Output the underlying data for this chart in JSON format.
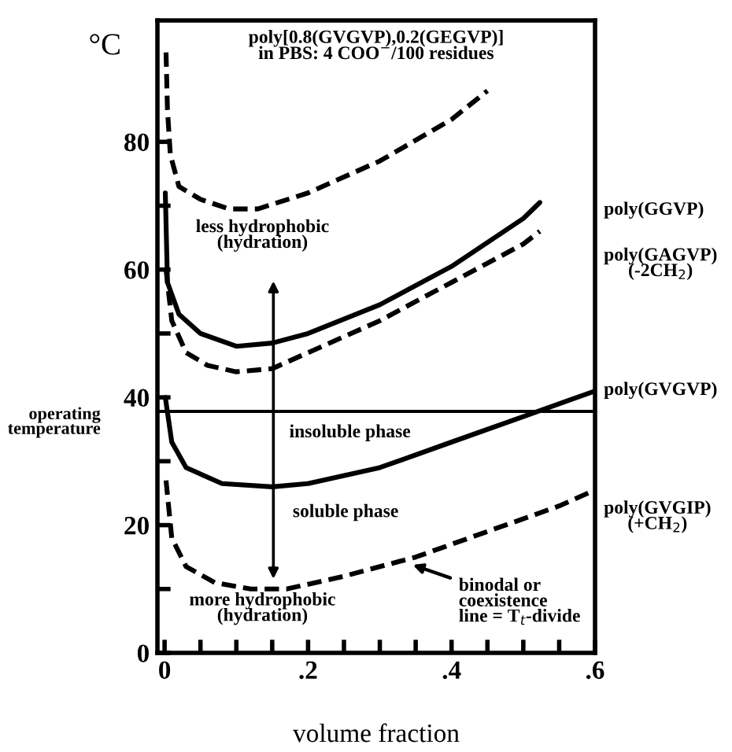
{
  "chart_data": {
    "type": "line",
    "title": "poly[0.8(GVGVP),0.2(GEGVP)]\nin PBS: 4 COO$^{−}$/100 residues",
    "xlabel": "volume fraction",
    "ylabel": "°C",
    "xlim": [
      -0.01,
      0.6
    ],
    "ylim": [
      0,
      99
    ],
    "xticks": [
      0,
      {
        "value": 0.05,
        "label": null
      },
      {
        "value": 0.1,
        "label": null
      },
      {
        "value": 0.15,
        "label": null
      },
      {
        "value": 0.2,
        "label": ".2"
      },
      {
        "value": 0.25,
        "label": null
      },
      {
        "value": 0.3,
        "label": null
      },
      {
        "value": 0.35,
        "label": null
      },
      {
        "value": 0.4,
        "label": ".4"
      },
      {
        "value": 0.45,
        "label": null
      },
      {
        "value": 0.5,
        "label": null
      },
      {
        "value": 0.55,
        "label": null
      },
      {
        "value": 0.6,
        "label": ".6"
      }
    ],
    "yticks": [
      0,
      {
        "value": 10,
        "label": null
      },
      20,
      {
        "value": 30,
        "label": null
      },
      40,
      {
        "value": 50,
        "label": null
      },
      60,
      {
        "value": 70,
        "label": null
      },
      80
    ],
    "grid": false,
    "legend": false,
    "series": [
      {
        "color": "#000000",
        "line_style": "dashed",
        "x": [
          0.002,
          0.004,
          0.008,
          0.02,
          0.05,
          0.09,
          0.13,
          0.2,
          0.3,
          0.4,
          0.45
        ],
        "values": [
          94,
          85,
          78,
          73,
          71,
          69.5,
          69.5,
          72,
          77,
          83.5,
          88
        ]
      },
      {
        "color": "#000000",
        "line_style": "solid",
        "x": [
          0.001,
          0.004,
          0.02,
          0.05,
          0.1,
          0.15,
          0.2,
          0.3,
          0.4,
          0.5,
          0.523
        ],
        "values": [
          72,
          58,
          53,
          50,
          48,
          48.5,
          50,
          54.5,
          60.5,
          68,
          70.5
        ]
      },
      {
        "color": "#000000",
        "line_style": "dashed",
        "x": [
          0.002,
          0.01,
          0.03,
          0.06,
          0.1,
          0.15,
          0.2,
          0.3,
          0.4,
          0.5,
          0.523
        ],
        "values": [
          60,
          52,
          47,
          45,
          44,
          44.5,
          47,
          52,
          58,
          64,
          66
        ]
      },
      {
        "color": "#000000",
        "line_style": "solid",
        "x": [
          0.001,
          0.01,
          0.03,
          0.08,
          0.15,
          0.2,
          0.3,
          0.4,
          0.5,
          0.6
        ],
        "values": [
          40,
          33,
          29,
          26.5,
          26,
          26.5,
          29,
          33,
          37,
          41
        ]
      },
      {
        "color": "#000000",
        "line_style": "dashed",
        "x": [
          0.002,
          0.01,
          0.03,
          0.07,
          0.12,
          0.17,
          0.25,
          0.35,
          0.45,
          0.55,
          0.6
        ],
        "values": [
          27,
          18,
          13.5,
          11,
          10,
          10,
          12,
          15,
          19,
          23,
          25.5
        ]
      }
    ],
    "ref_lines": [
      {
        "axis": "y",
        "value": 37.8,
        "label": "operating\ntemperature",
        "color": "#000000",
        "line_style": "solid"
      }
    ],
    "annotations": [
      "less hydrophobic\n(hydration)",
      "more hydrophobic\n(hydration)",
      "insoluble phase",
      "soluble phase",
      {
        "text": "binodal or\ncoexistence\nline = T$_{t}$-divide",
        "x": 0.34,
        "y": 14
      },
      "poly(GGVP)",
      "poly(GAGVP)\n(-2CH$_{2}$)",
      "poly(GVGVP)",
      "poly(GVGIP)\n(+CH$_{2}$)"
    ]
  }
}
